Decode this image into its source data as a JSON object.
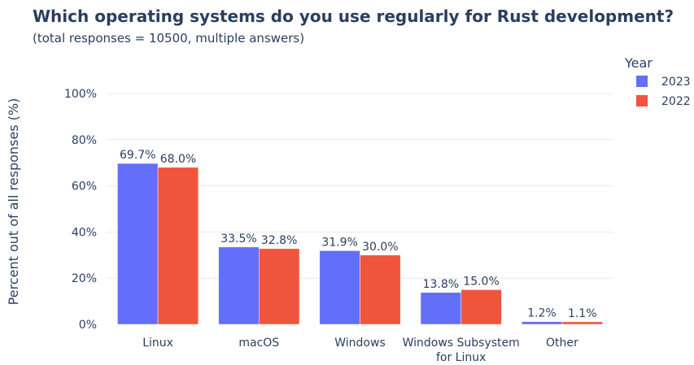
{
  "chart_data": {
    "type": "bar",
    "title": "Which operating systems do you use regularly for Rust development?",
    "subtitle": "(total responses = 10500, multiple answers)",
    "xlabel": "",
    "ylabel": "Percent out of all responses (%)",
    "ylim": [
      0,
      100
    ],
    "yticks": [
      0,
      20,
      40,
      60,
      80,
      100
    ],
    "ytick_suffix": "%",
    "grid": true,
    "categories": [
      [
        "Linux"
      ],
      [
        "macOS"
      ],
      [
        "Windows"
      ],
      [
        "Windows Subsystem",
        "for Linux"
      ],
      [
        "Other"
      ]
    ],
    "legend": {
      "title": "Year",
      "position": "top-right"
    },
    "series": [
      {
        "name": "2023",
        "color": "#636efa",
        "values": [
          69.7,
          33.5,
          31.9,
          13.8,
          1.2
        ],
        "labels": [
          "69.7%",
          "33.5%",
          "31.9%",
          "13.8%",
          "1.2%"
        ]
      },
      {
        "name": "2022",
        "color": "#ef553b",
        "values": [
          68.0,
          32.8,
          30.0,
          15.0,
          1.1
        ],
        "labels": [
          "68.0%",
          "32.8%",
          "30.0%",
          "15.0%",
          "1.1%"
        ]
      }
    ]
  }
}
